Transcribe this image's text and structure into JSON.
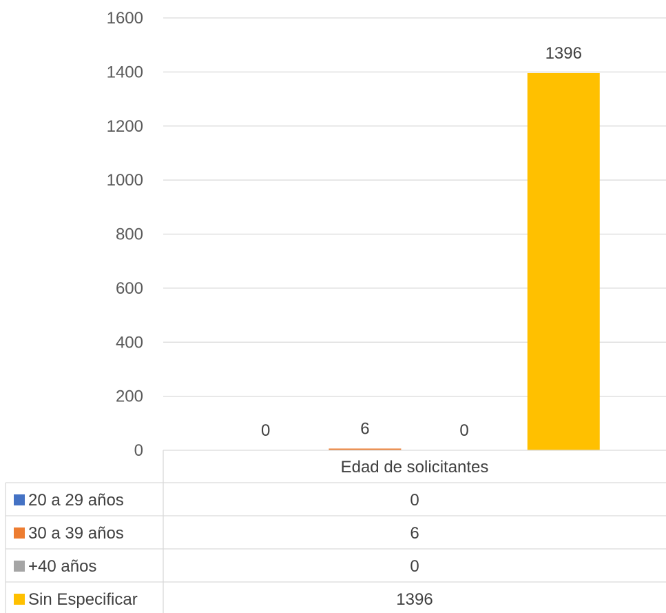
{
  "chart_data": {
    "type": "bar",
    "categories": [
      "Edad de solicitantes"
    ],
    "series": [
      {
        "name": "20 a 29 años",
        "values": [
          0
        ],
        "color": "#4472C4"
      },
      {
        "name": "30 a 39 años",
        "values": [
          6
        ],
        "color": "#ED7D31"
      },
      {
        "name": "+40 años",
        "values": [
          0
        ],
        "color": "#A5A5A5"
      },
      {
        "name": "Sin Especificar",
        "values": [
          1396
        ],
        "color": "#FFC000"
      }
    ],
    "ylim": [
      0,
      1600
    ],
    "yticks": [
      0,
      200,
      400,
      600,
      800,
      1000,
      1200,
      1400,
      1600
    ],
    "data_labels": [
      "0",
      "6",
      "0",
      "1396"
    ],
    "table_values": [
      "0",
      "6",
      "0",
      "1396"
    ],
    "grid": true,
    "legend_placement": "data-table"
  }
}
